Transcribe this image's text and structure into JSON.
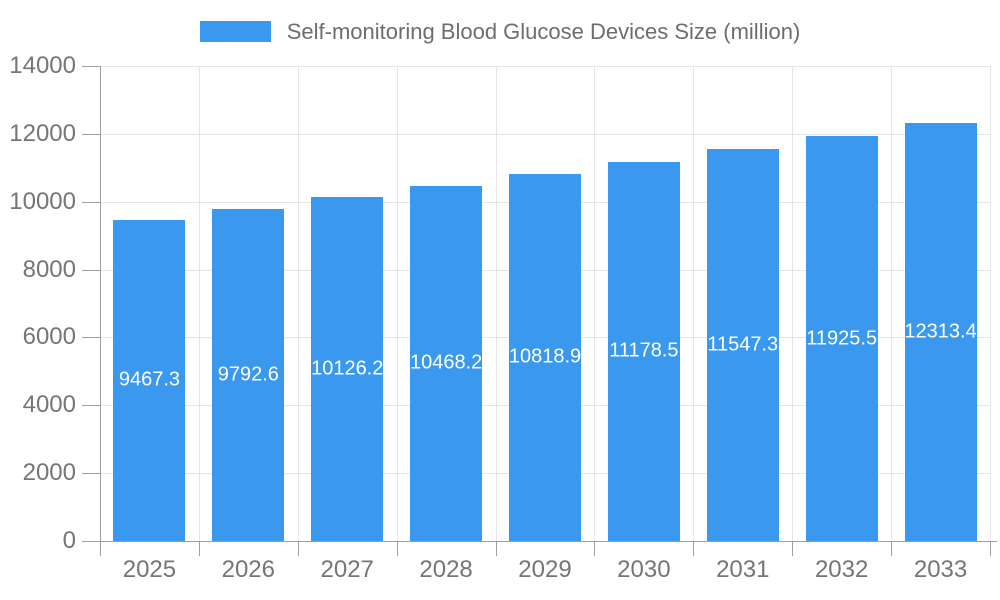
{
  "legend": {
    "label": "Self-monitoring Blood Glucose Devices Size (million)",
    "swatch_color": "#3A99EE"
  },
  "chart_data": {
    "type": "bar",
    "title": "Self-monitoring Blood Glucose Devices Size (million)",
    "categories": [
      "2025",
      "2026",
      "2027",
      "2028",
      "2029",
      "2030",
      "2031",
      "2032",
      "2033"
    ],
    "series": [
      {
        "name": "Self-monitoring Blood Glucose Devices Size (million)",
        "color": "#3A99EE",
        "values": [
          9467.3,
          9792.6,
          10126.2,
          10468.2,
          10818.9,
          11178.5,
          11547.3,
          11925.5,
          12313.4
        ],
        "labels": [
          "9467.3",
          "9792.6",
          "10126.2",
          "10468.2",
          "10818.9",
          "11178.5",
          "11547.3",
          "11925.5",
          "12313.4"
        ]
      }
    ],
    "xlabel": "",
    "ylabel": "",
    "ylim": [
      0,
      14000
    ],
    "yticks": [
      0,
      2000,
      4000,
      6000,
      8000,
      10000,
      12000,
      14000
    ],
    "grid": true,
    "grid_vertical": true,
    "legend_position": "top-center",
    "bar_label_position": "inside-center"
  },
  "colors": {
    "bar": "#3A99EE",
    "bar_label": "#ffffff",
    "axis_line": "#9e9e9e",
    "axis_label_text": "#757575",
    "title_text": "#6d6d6d",
    "grid_line": "#e5e5e5",
    "background": "#ffffff"
  }
}
